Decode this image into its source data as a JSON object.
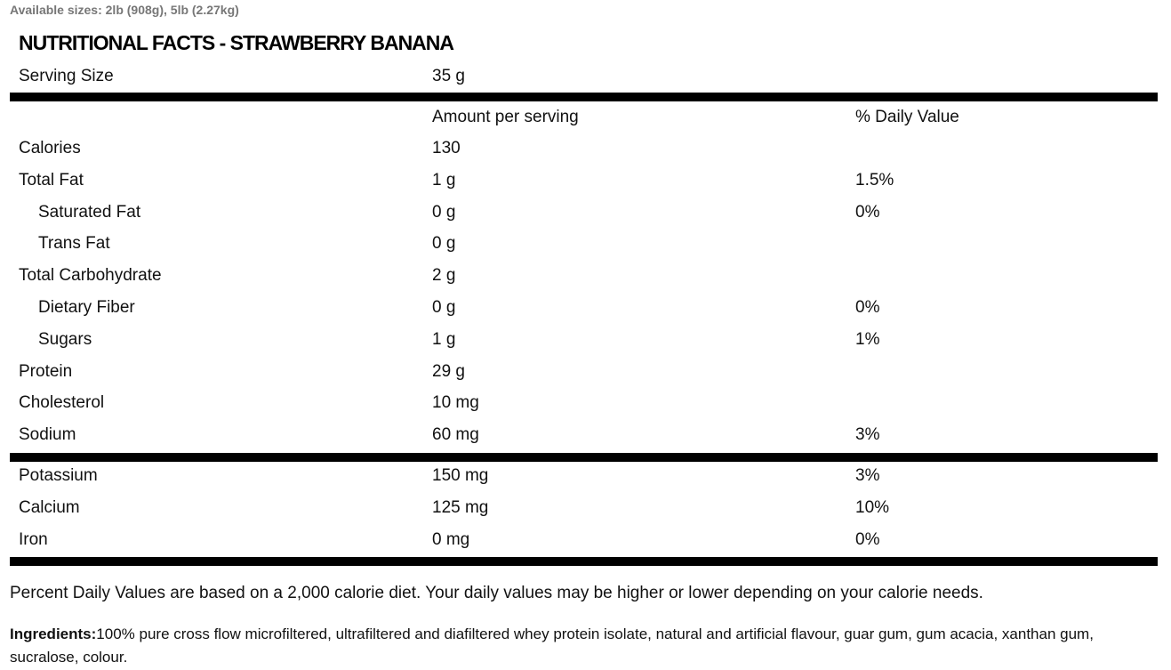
{
  "header": {
    "sizes": "Available sizes: 2lb (908g), 5lb (2.27kg)",
    "title": "NUTRITIONAL FACTS - STRAWBERRY BANANA"
  },
  "serving": [
    "Serving Size",
    "35 g"
  ],
  "table": {
    "header": [
      "Amount per serving",
      "% Daily Value"
    ],
    "rows": [
      [
        "Calories",
        "130"
      ],
      [
        "Total Fat",
        "1 g",
        "1.5%"
      ],
      [
        "Saturated Fat",
        "0 g",
        "0%"
      ],
      [
        "Trans Fat",
        "0 g"
      ],
      [
        "Total Carbohydrate",
        "2 g"
      ],
      [
        "Dietary Fiber",
        "0 g",
        "0%"
      ],
      [
        "Sugars",
        "1 g",
        "1%"
      ],
      [
        "Protein",
        "29 g"
      ],
      [
        "Cholesterol",
        "10 mg"
      ],
      [
        "Sodium",
        "60 mg",
        "3%"
      ]
    ],
    "minerals": [
      [
        "Potassium",
        "150 mg",
        "3%"
      ],
      [
        "Calcium",
        "125 mg",
        "10%"
      ],
      [
        "Iron",
        "0 mg",
        "0%"
      ]
    ]
  },
  "footnote": "Percent Daily Values are based on a 2,000 calorie diet. Your daily values may be higher or lower depending on your calorie needs.",
  "ingredients": {
    "label": "Ingredients:",
    "text": "100% pure cross flow microfiltered, ultrafiltered and diafiltered whey protein isolate, natural and artificial flavour, guar gum, gum acacia, xanthan gum, sucralose, colour."
  }
}
